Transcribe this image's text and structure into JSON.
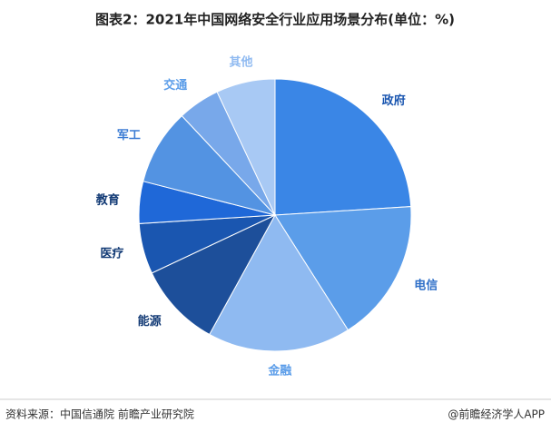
{
  "chart_data": {
    "type": "pie",
    "title": "图表2：2021年中国网络安全行业应用场景分布(单位：%)",
    "categories": [
      "政府",
      "电信",
      "金融",
      "能源",
      "医疗",
      "教育",
      "军工",
      "交通",
      "其他"
    ],
    "values": [
      24,
      17,
      17,
      10,
      6,
      5,
      9,
      5,
      7
    ],
    "colors": [
      "#3a86e6",
      "#5b9de9",
      "#8fbaf1",
      "#1d4f9a",
      "#1a56b0",
      "#1f68d8",
      "#5393e2",
      "#78a8ea",
      "#a8c9f4"
    ],
    "label_colors": [
      "#1a56b0",
      "#2f6fc8",
      "#5b9de9",
      "#123a75",
      "#123a75",
      "#123a75",
      "#3a7bd4",
      "#5b9de9",
      "#8fbaf1"
    ],
    "source": "资料来源：中国信通院 前瞻产业研究院",
    "credit": "@前瞻经济学人APP"
  }
}
